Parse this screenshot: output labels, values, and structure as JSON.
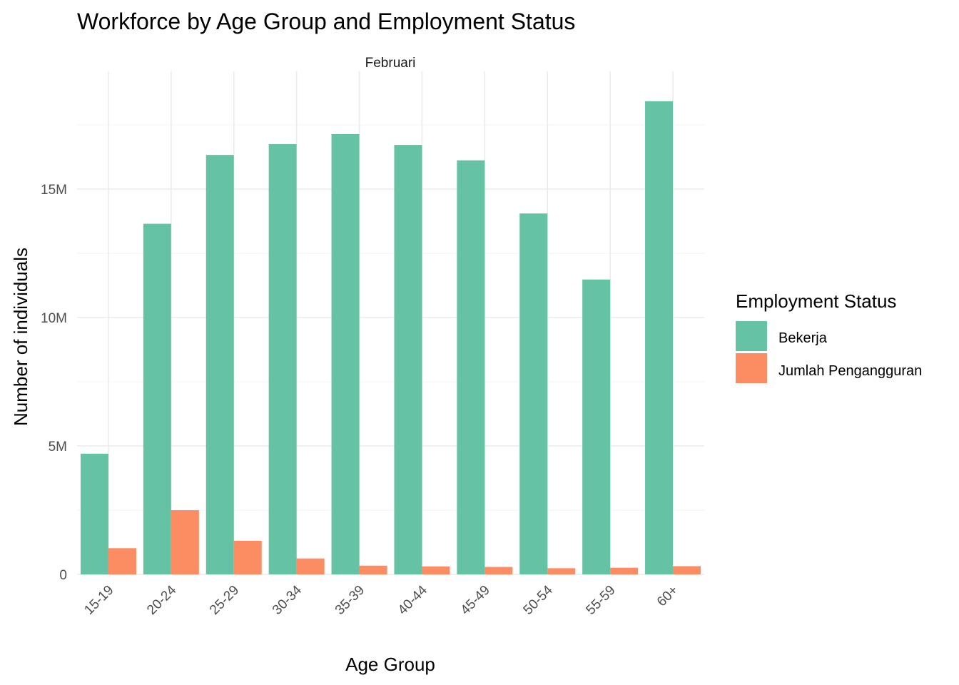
{
  "chart_data": {
    "type": "bar",
    "title": "Workforce by Age Group and Employment Status",
    "facet_label": "Februari",
    "xlabel": "Age Group",
    "ylabel": "Number of individuals",
    "categories": [
      "15-19",
      "20-24",
      "25-29",
      "30-34",
      "35-39",
      "40-44",
      "45-49",
      "50-54",
      "55-59",
      "60+"
    ],
    "y_ticks": [
      {
        "value": 0,
        "label": "0"
      },
      {
        "value": 5000000,
        "label": "5M"
      },
      {
        "value": 10000000,
        "label": "10M"
      },
      {
        "value": 15000000,
        "label": "15M"
      }
    ],
    "ylim": [
      0,
      18400000
    ],
    "grid": true,
    "legend": {
      "title": "Employment Status",
      "position": "right"
    },
    "series": [
      {
        "name": "Bekerja",
        "color": "#66c2a5",
        "values": [
          4700000,
          13650000,
          16330000,
          16750000,
          17140000,
          16720000,
          16120000,
          14050000,
          11480000,
          18420000
        ]
      },
      {
        "name": "Jumlah Pengangguran",
        "color": "#fc8d62",
        "values": [
          1020000,
          2500000,
          1310000,
          620000,
          340000,
          310000,
          290000,
          240000,
          260000,
          320000
        ]
      }
    ]
  }
}
